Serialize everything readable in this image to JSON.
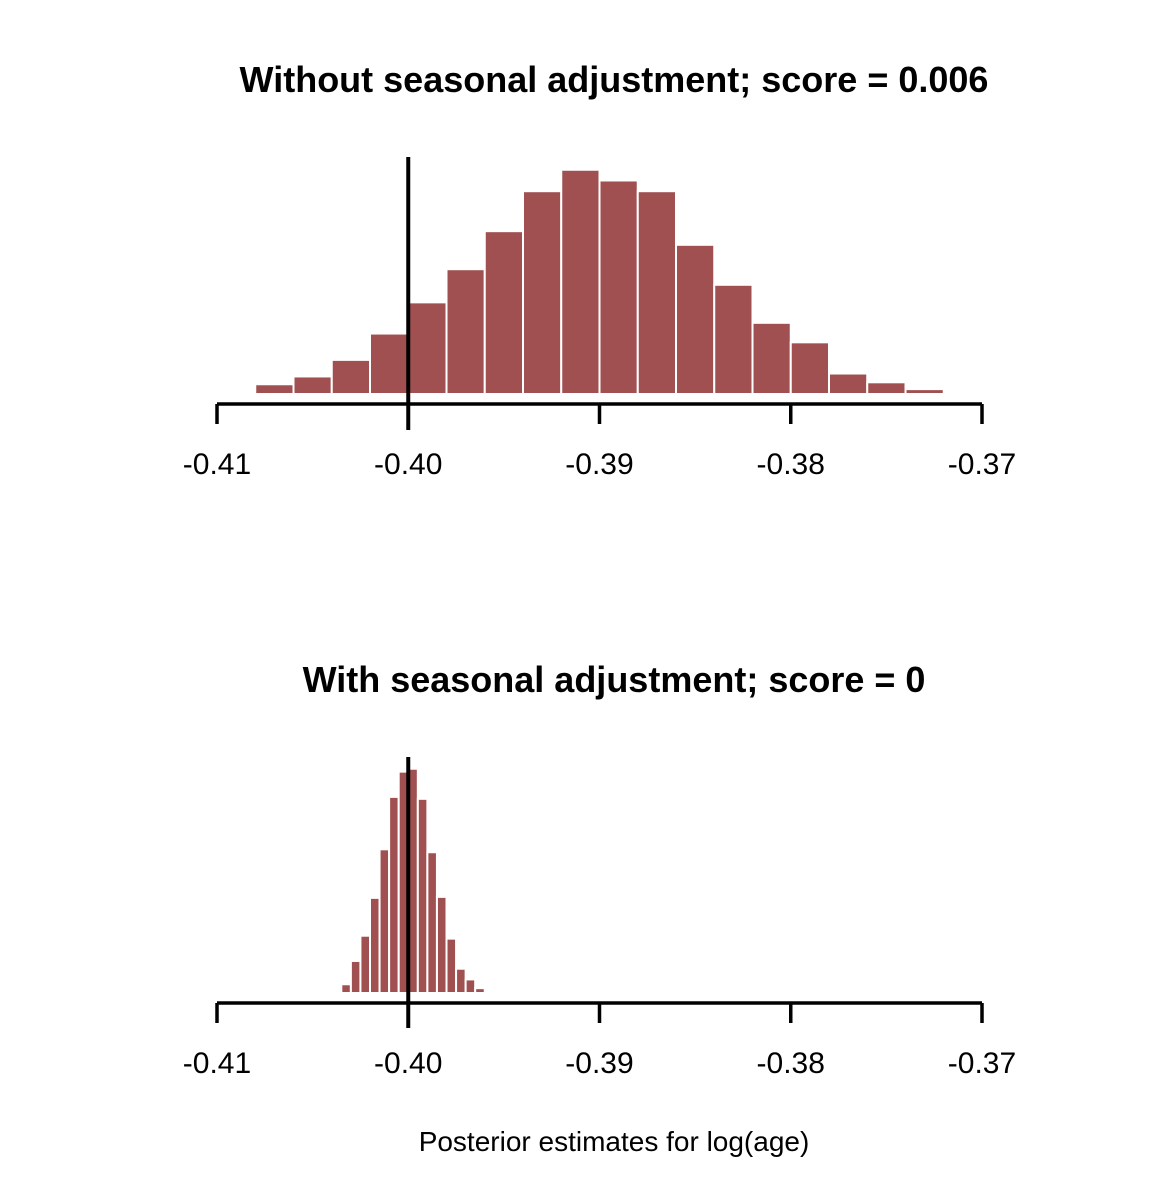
{
  "chart_data": [
    {
      "type": "bar",
      "title": "Without seasonal adjustment; score = 0.006",
      "xlabel": "",
      "ylabel": "",
      "xlim": [
        -0.41,
        -0.37
      ],
      "ylim": [
        0,
        240
      ],
      "x_ticks": [
        -0.41,
        -0.4,
        -0.39,
        -0.38,
        -0.37
      ],
      "x_tick_labels": [
        "-0.41",
        "-0.40",
        "-0.39",
        "-0.38",
        "-0.37"
      ],
      "reference_line": -0.4,
      "bar_color": "#a05050",
      "bins": [
        {
          "start": -0.41,
          "end": -0.408,
          "count": 2
        },
        {
          "start": -0.408,
          "end": -0.406,
          "count": 10
        },
        {
          "start": -0.406,
          "end": -0.404,
          "count": 18
        },
        {
          "start": -0.404,
          "end": -0.402,
          "count": 35
        },
        {
          "start": -0.402,
          "end": -0.4,
          "count": 62
        },
        {
          "start": -0.4,
          "end": -0.398,
          "count": 94
        },
        {
          "start": -0.398,
          "end": -0.396,
          "count": 128
        },
        {
          "start": -0.396,
          "end": -0.394,
          "count": 167
        },
        {
          "start": -0.394,
          "end": -0.392,
          "count": 208
        },
        {
          "start": -0.392,
          "end": -0.39,
          "count": 230
        },
        {
          "start": -0.39,
          "end": -0.388,
          "count": 219
        },
        {
          "start": -0.388,
          "end": -0.386,
          "count": 208
        },
        {
          "start": -0.386,
          "end": -0.384,
          "count": 153
        },
        {
          "start": -0.384,
          "end": -0.382,
          "count": 112
        },
        {
          "start": -0.382,
          "end": -0.38,
          "count": 73
        },
        {
          "start": -0.38,
          "end": -0.378,
          "count": 53
        },
        {
          "start": -0.378,
          "end": -0.376,
          "count": 21
        },
        {
          "start": -0.376,
          "end": -0.374,
          "count": 12
        },
        {
          "start": -0.374,
          "end": -0.372,
          "count": 5
        }
      ]
    },
    {
      "type": "bar",
      "title": "With seasonal adjustment; score = 0",
      "xlabel": "Posterior estimates for log(age)",
      "ylabel": "",
      "xlim": [
        -0.41,
        -0.37
      ],
      "ylim": [
        0,
        240
      ],
      "x_ticks": [
        -0.41,
        -0.4,
        -0.39,
        -0.38,
        -0.37
      ],
      "x_tick_labels": [
        "-0.41",
        "-0.40",
        "-0.39",
        "-0.38",
        "-0.37"
      ],
      "reference_line": -0.4,
      "bar_color": "#a05050",
      "bins": [
        {
          "start": -0.404,
          "end": -0.4035,
          "count": 2
        },
        {
          "start": -0.4035,
          "end": -0.403,
          "count": 9
        },
        {
          "start": -0.403,
          "end": -0.4025,
          "count": 33
        },
        {
          "start": -0.4025,
          "end": -0.402,
          "count": 59
        },
        {
          "start": -0.402,
          "end": -0.4015,
          "count": 98
        },
        {
          "start": -0.4015,
          "end": -0.401,
          "count": 148
        },
        {
          "start": -0.401,
          "end": -0.4005,
          "count": 202
        },
        {
          "start": -0.4005,
          "end": -0.4,
          "count": 228
        },
        {
          "start": -0.4,
          "end": -0.3995,
          "count": 231
        },
        {
          "start": -0.3995,
          "end": -0.399,
          "count": 200
        },
        {
          "start": -0.399,
          "end": -0.3985,
          "count": 145
        },
        {
          "start": -0.3985,
          "end": -0.398,
          "count": 99
        },
        {
          "start": -0.398,
          "end": -0.3975,
          "count": 56
        },
        {
          "start": -0.3975,
          "end": -0.397,
          "count": 25
        },
        {
          "start": -0.397,
          "end": -0.3965,
          "count": 14
        },
        {
          "start": -0.3965,
          "end": -0.396,
          "count": 5
        }
      ]
    }
  ]
}
